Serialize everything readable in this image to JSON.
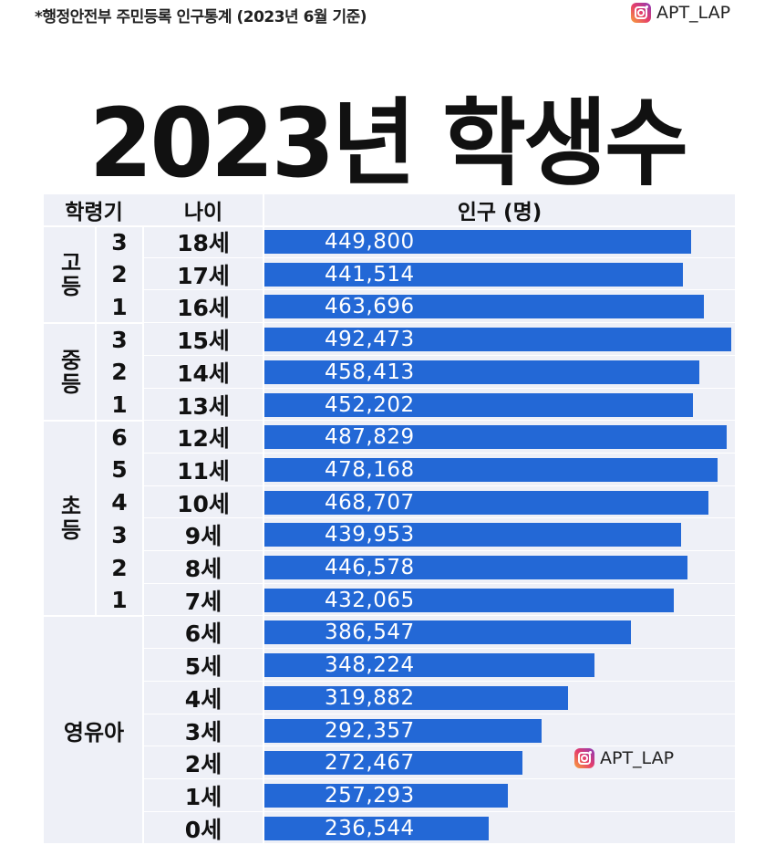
{
  "source_note": "*행정안전부 주민등록 인구통계 (2023년 6월 기준)",
  "brand": {
    "handle": "APT_LAP",
    "icon": "instagram-icon"
  },
  "title": "2023년 학생수",
  "headers": {
    "grade": "학령기",
    "age": "나이",
    "population": "인구 (명)"
  },
  "colors": {
    "bar": "#2368d6",
    "table_bg": "#eef0f7",
    "bar_label": "#ffffff"
  },
  "groups": [
    {
      "label": "고등",
      "rows": 3
    },
    {
      "label": "중등",
      "rows": 3
    },
    {
      "label": "초등",
      "rows": 6
    },
    {
      "label": "영유아",
      "rows": 7
    }
  ],
  "chart_data": {
    "type": "bar",
    "orientation": "horizontal",
    "title": "2023년 학생수",
    "ylabel": "나이",
    "xlabel": "인구 (명)",
    "rows": [
      {
        "group": "고등",
        "grade": "3",
        "age": "18세",
        "value": 449800,
        "label": "449,800"
      },
      {
        "group": "고등",
        "grade": "2",
        "age": "17세",
        "value": 441514,
        "label": "441,514"
      },
      {
        "group": "고등",
        "grade": "1",
        "age": "16세",
        "value": 463696,
        "label": "463,696"
      },
      {
        "group": "중등",
        "grade": "3",
        "age": "15세",
        "value": 492473,
        "label": "492,473"
      },
      {
        "group": "중등",
        "grade": "2",
        "age": "14세",
        "value": 458413,
        "label": "458,413"
      },
      {
        "group": "중등",
        "grade": "1",
        "age": "13세",
        "value": 452202,
        "label": "452,202"
      },
      {
        "group": "초등",
        "grade": "6",
        "age": "12세",
        "value": 487829,
        "label": "487,829"
      },
      {
        "group": "초등",
        "grade": "5",
        "age": "11세",
        "value": 478168,
        "label": "478,168"
      },
      {
        "group": "초등",
        "grade": "4",
        "age": "10세",
        "value": 468707,
        "label": "468,707"
      },
      {
        "group": "초등",
        "grade": "3",
        "age": "9세",
        "value": 439953,
        "label": "439,953"
      },
      {
        "group": "초등",
        "grade": "2",
        "age": "8세",
        "value": 446578,
        "label": "446,578"
      },
      {
        "group": "초등",
        "grade": "1",
        "age": "7세",
        "value": 432065,
        "label": "432,065"
      },
      {
        "group": "영유아",
        "grade": "",
        "age": "6세",
        "value": 386547,
        "label": "386,547"
      },
      {
        "group": "영유아",
        "grade": "",
        "age": "5세",
        "value": 348224,
        "label": "348,224"
      },
      {
        "group": "영유아",
        "grade": "",
        "age": "4세",
        "value": 319882,
        "label": "319,882"
      },
      {
        "group": "영유아",
        "grade": "",
        "age": "3세",
        "value": 292357,
        "label": "292,357"
      },
      {
        "group": "영유아",
        "grade": "",
        "age": "2세",
        "value": 272467,
        "label": "272,467"
      },
      {
        "group": "영유아",
        "grade": "",
        "age": "1세",
        "value": 257293,
        "label": "257,293"
      },
      {
        "group": "영유아",
        "grade": "",
        "age": "0세",
        "value": 236544,
        "label": "236,544"
      }
    ],
    "xlim": [
      0,
      500000
    ],
    "grid": false,
    "legend": "none"
  }
}
